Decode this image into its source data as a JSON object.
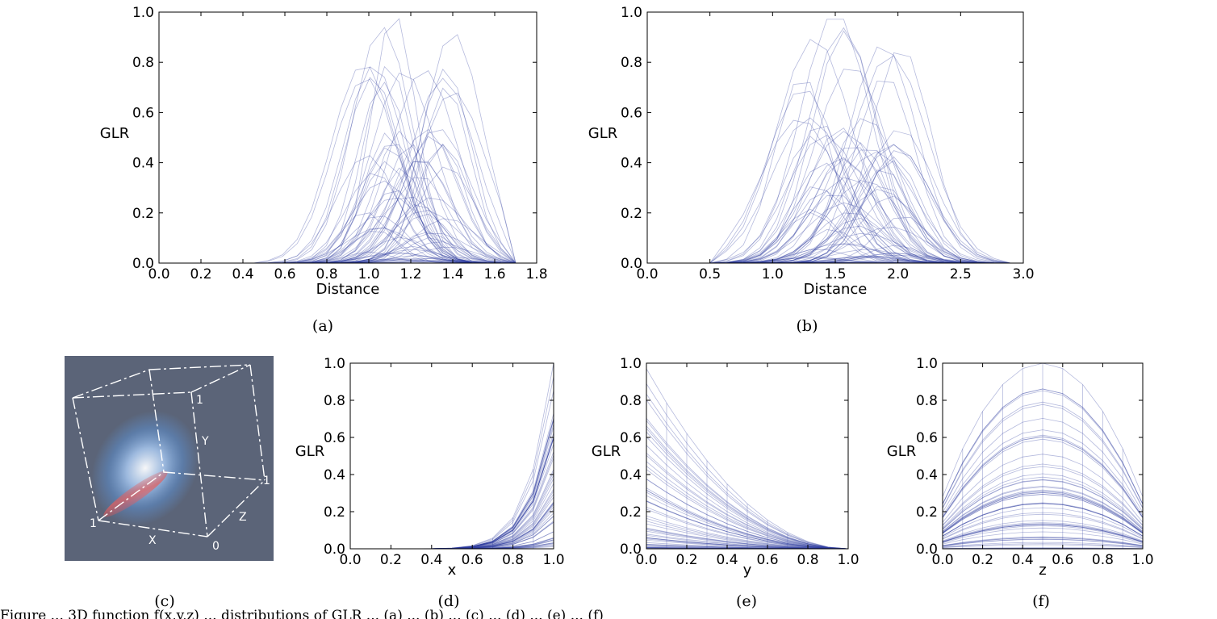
{
  "figure": {
    "caption_fragment": "Figure ... 3D function f(x,y,z) ... distributions of GLR ... (a) ... (b) ... (c) ... (d) ... (e) ... (f)"
  },
  "colors": {
    "line": "#2b3a9e",
    "cube_bg": "#5b6478"
  },
  "chart_data": [
    {
      "id": "a",
      "type": "line",
      "subfigure_label": "(a)",
      "xlabel": "Distance",
      "ylabel": "GLR",
      "xlim": [
        0.0,
        1.8
      ],
      "ylim": [
        0.0,
        1.0
      ],
      "xticks": [
        "0.0",
        "0.2",
        "0.4",
        "0.6",
        "0.8",
        "1.0",
        "1.2",
        "1.4",
        "1.6",
        "1.8"
      ],
      "yticks": [
        "0.0",
        "0.2",
        "0.4",
        "0.6",
        "0.8",
        "1.0"
      ],
      "peak": {
        "x": 1.12,
        "y": 1.0
      },
      "support": [
        0.45,
        1.7
      ],
      "series_family": "many overlaid GLR curves (bell-shaped)"
    },
    {
      "id": "b",
      "type": "line",
      "subfigure_label": "(b)",
      "xlabel": "Distance",
      "ylabel": "GLR",
      "xlim": [
        0.0,
        3.0
      ],
      "ylim": [
        0.0,
        1.0
      ],
      "xticks": [
        "0.0",
        "0.5",
        "1.0",
        "1.5",
        "2.0",
        "2.5",
        "3.0"
      ],
      "yticks": [
        "0.0",
        "0.2",
        "0.4",
        "0.6",
        "0.8",
        "1.0"
      ],
      "peak": {
        "x": 1.5,
        "y": 1.0
      },
      "support": [
        0.5,
        2.9
      ],
      "series_family": "many overlaid GLR curves (bell-shaped)"
    },
    {
      "id": "d",
      "type": "line",
      "subfigure_label": "(d)",
      "xlabel": "x",
      "ylabel": "GLR",
      "xlim": [
        0.0,
        1.0
      ],
      "ylim": [
        0.0,
        1.0
      ],
      "xticks": [
        "0.0",
        "0.2",
        "0.4",
        "0.6",
        "0.8",
        "1.0"
      ],
      "yticks": [
        "0.0",
        "0.2",
        "0.4",
        "0.6",
        "0.8",
        "1.0"
      ],
      "peak": {
        "x": 1.0,
        "y": 1.0
      },
      "series_family": "GLR vs x, increasing curves"
    },
    {
      "id": "e",
      "type": "line",
      "subfigure_label": "(e)",
      "xlabel": "y",
      "ylabel": "GLR",
      "xlim": [
        0.0,
        1.0
      ],
      "ylim": [
        0.0,
        1.0
      ],
      "xticks": [
        "0.0",
        "0.2",
        "0.4",
        "0.6",
        "0.8",
        "1.0"
      ],
      "yticks": [
        "0.0",
        "0.2",
        "0.4",
        "0.6",
        "0.8",
        "1.0"
      ],
      "peak": {
        "x": 0.0,
        "y": 0.97
      },
      "series_family": "GLR vs y, decreasing curves"
    },
    {
      "id": "f",
      "type": "line",
      "subfigure_label": "(f)",
      "xlabel": "z",
      "ylabel": "GLR",
      "xlim": [
        0.0,
        1.0
      ],
      "ylim": [
        0.0,
        1.0
      ],
      "xticks": [
        "0.0",
        "0.2",
        "0.4",
        "0.6",
        "0.8",
        "1.0"
      ],
      "yticks": [
        "0.0",
        "0.2",
        "0.4",
        "0.6",
        "0.8",
        "1.0"
      ],
      "peak": {
        "x": 0.5,
        "y": 1.0
      },
      "series_family": "GLR vs z, arch-shaped curves"
    }
  ],
  "cube_panel": {
    "subfigure_label": "(c)",
    "labels": {
      "x_axis": "X",
      "y_axis": "Y",
      "z_axis": "Z",
      "tick_one_a": "1",
      "tick_one_b": "1",
      "tick_one_c": "1",
      "tick_zero": "0"
    }
  }
}
